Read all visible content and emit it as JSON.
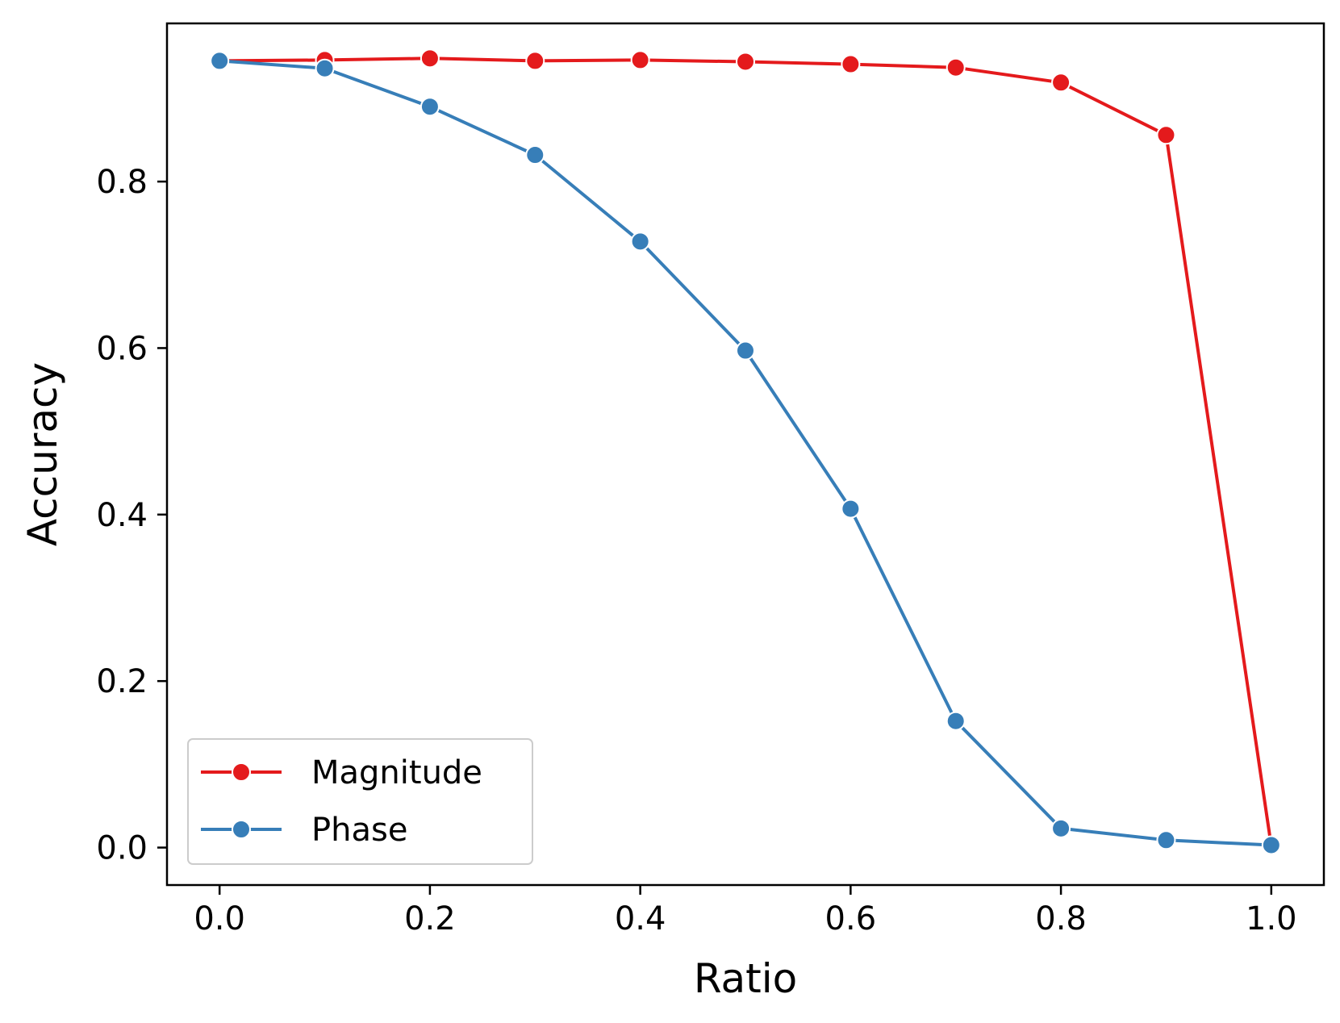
{
  "chart_data": {
    "type": "line",
    "title": "",
    "xlabel": "Ratio",
    "ylabel": "Accuracy",
    "xlim": [
      -0.05,
      1.05
    ],
    "ylim": [
      -0.045,
      0.99
    ],
    "xticks": [
      0.0,
      0.2,
      0.4,
      0.6,
      0.8,
      1.0
    ],
    "xtick_labels": [
      "0.0",
      "0.2",
      "0.4",
      "0.6",
      "0.8",
      "1.0"
    ],
    "yticks": [
      0.0,
      0.2,
      0.4,
      0.6,
      0.8
    ],
    "ytick_labels": [
      "0.0",
      "0.2",
      "0.4",
      "0.6",
      "0.8"
    ],
    "grid": false,
    "legend_position": "lower-left",
    "x": [
      0.0,
      0.1,
      0.2,
      0.3,
      0.4,
      0.5,
      0.6,
      0.7,
      0.8,
      0.9,
      1.0
    ],
    "series": [
      {
        "name": "Magnitude",
        "color": "#e41a1c",
        "marker": "circle",
        "values": [
          0.945,
          0.946,
          0.948,
          0.945,
          0.946,
          0.944,
          0.941,
          0.937,
          0.919,
          0.856,
          0.002
        ]
      },
      {
        "name": "Phase",
        "color": "#377eb8",
        "marker": "circle",
        "values": [
          0.945,
          0.936,
          0.89,
          0.832,
          0.728,
          0.597,
          0.407,
          0.152,
          0.023,
          0.009,
          0.003
        ]
      }
    ]
  }
}
